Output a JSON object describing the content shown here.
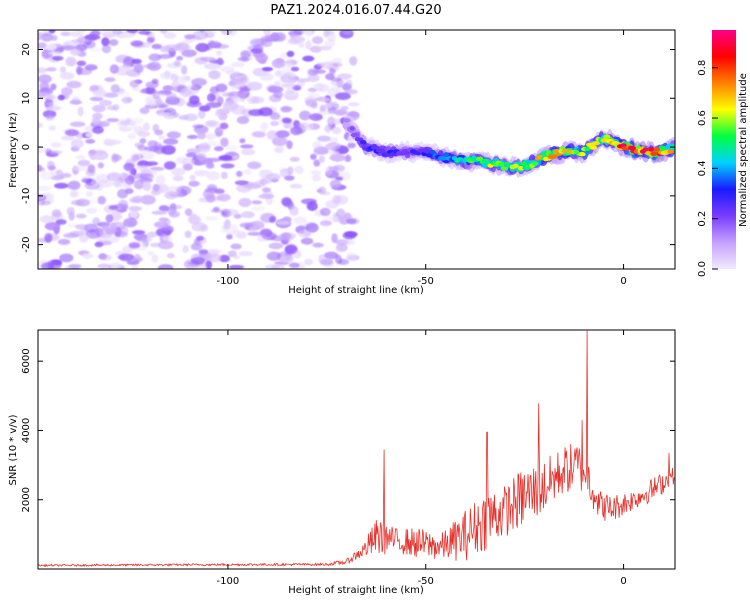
{
  "title": "PAZ1.2024.016.07.44.G20",
  "chart_data": [
    {
      "type": "heatmap",
      "xlabel": "Height of straight line (km)",
      "ylabel": "Frequency (Hz)",
      "xlim": [
        -148,
        13
      ],
      "ylim": [
        -25,
        24
      ],
      "x_ticks": [
        -100,
        -50,
        0
      ],
      "y_ticks": [
        -20,
        -10,
        0,
        10,
        20
      ],
      "grid": false,
      "colorbar": {
        "label": "Normalized spectral amplitude",
        "range": [
          0,
          0.95
        ],
        "ticks": [
          0.0,
          0.2,
          0.4,
          0.6,
          0.8
        ],
        "colors": [
          "#f2eaff",
          "#c4a0ff",
          "#7a3cff",
          "#1a1aff",
          "#00d2ff",
          "#00ff40",
          "#ffff00",
          "#ff8000",
          "#ff0000",
          "#ff0088"
        ]
      },
      "noise_region": {
        "x": [
          -148,
          -70
        ],
        "y": [
          -25,
          24
        ],
        "amplitude": [
          0.0,
          0.2
        ]
      },
      "signal_track": [
        {
          "x": -70,
          "y": 5,
          "amp": 0.15
        },
        {
          "x": -65,
          "y": 0,
          "amp": 0.3
        },
        {
          "x": -60,
          "y": -1,
          "amp": 0.3
        },
        {
          "x": -55,
          "y": -1,
          "amp": 0.25
        },
        {
          "x": -50,
          "y": -1,
          "amp": 0.3
        },
        {
          "x": -45,
          "y": -2,
          "amp": 0.4
        },
        {
          "x": -40,
          "y": -3,
          "amp": 0.5
        },
        {
          "x": -35,
          "y": -3,
          "amp": 0.6
        },
        {
          "x": -30,
          "y": -4,
          "amp": 0.55
        },
        {
          "x": -25,
          "y": -4,
          "amp": 0.6
        },
        {
          "x": -20,
          "y": -2,
          "amp": 0.7
        },
        {
          "x": -15,
          "y": -1,
          "amp": 0.75
        },
        {
          "x": -10,
          "y": -1,
          "amp": 0.6
        },
        {
          "x": -5,
          "y": 2,
          "amp": 0.65
        },
        {
          "x": 0,
          "y": 0,
          "amp": 0.85
        },
        {
          "x": 5,
          "y": -1,
          "amp": 0.85
        },
        {
          "x": 10,
          "y": -1,
          "amp": 0.8
        },
        {
          "x": 13,
          "y": 0,
          "amp": 0.6
        }
      ]
    },
    {
      "type": "line",
      "xlabel": "Height of straight line (km)",
      "ylabel": "SNR (10 * v/v)",
      "xlim": [
        -148,
        13
      ],
      "ylim": [
        0,
        6900
      ],
      "x_ticks": [
        -100,
        -50,
        0
      ],
      "y_ticks": [
        2000,
        4000,
        6000
      ],
      "grid": false,
      "color": "#e8302a",
      "envelope": [
        {
          "x": -148,
          "base": 100,
          "amp": 50
        },
        {
          "x": -110,
          "base": 120,
          "amp": 60
        },
        {
          "x": -75,
          "base": 130,
          "amp": 70
        },
        {
          "x": -70,
          "base": 200,
          "amp": 150
        },
        {
          "x": -66,
          "base": 500,
          "amp": 400
        },
        {
          "x": -62,
          "base": 900,
          "amp": 1200
        },
        {
          "x": -58,
          "base": 800,
          "amp": 700
        },
        {
          "x": -52,
          "base": 700,
          "amp": 900
        },
        {
          "x": -46,
          "base": 600,
          "amp": 800
        },
        {
          "x": -40,
          "base": 900,
          "amp": 1500
        },
        {
          "x": -34,
          "base": 1400,
          "amp": 1800
        },
        {
          "x": -30,
          "base": 1600,
          "amp": 1500
        },
        {
          "x": -25,
          "base": 2000,
          "amp": 1800
        },
        {
          "x": -20,
          "base": 2300,
          "amp": 1600
        },
        {
          "x": -15,
          "base": 2800,
          "amp": 1400
        },
        {
          "x": -10,
          "base": 2900,
          "amp": 1600
        },
        {
          "x": -6,
          "base": 1800,
          "amp": 900
        },
        {
          "x": -3,
          "base": 1700,
          "amp": 800
        },
        {
          "x": 3,
          "base": 2000,
          "amp": 600
        },
        {
          "x": 8,
          "base": 2300,
          "amp": 700
        },
        {
          "x": 13,
          "base": 2700,
          "amp": 500
        }
      ],
      "peaks": [
        {
          "x": -60.5,
          "y": 3450
        },
        {
          "x": -34.5,
          "y": 3950
        },
        {
          "x": -21.5,
          "y": 4780
        },
        {
          "x": -10.5,
          "y": 4300
        },
        {
          "x": -9.2,
          "y": 6880
        },
        {
          "x": 11.5,
          "y": 3350
        }
      ]
    }
  ]
}
